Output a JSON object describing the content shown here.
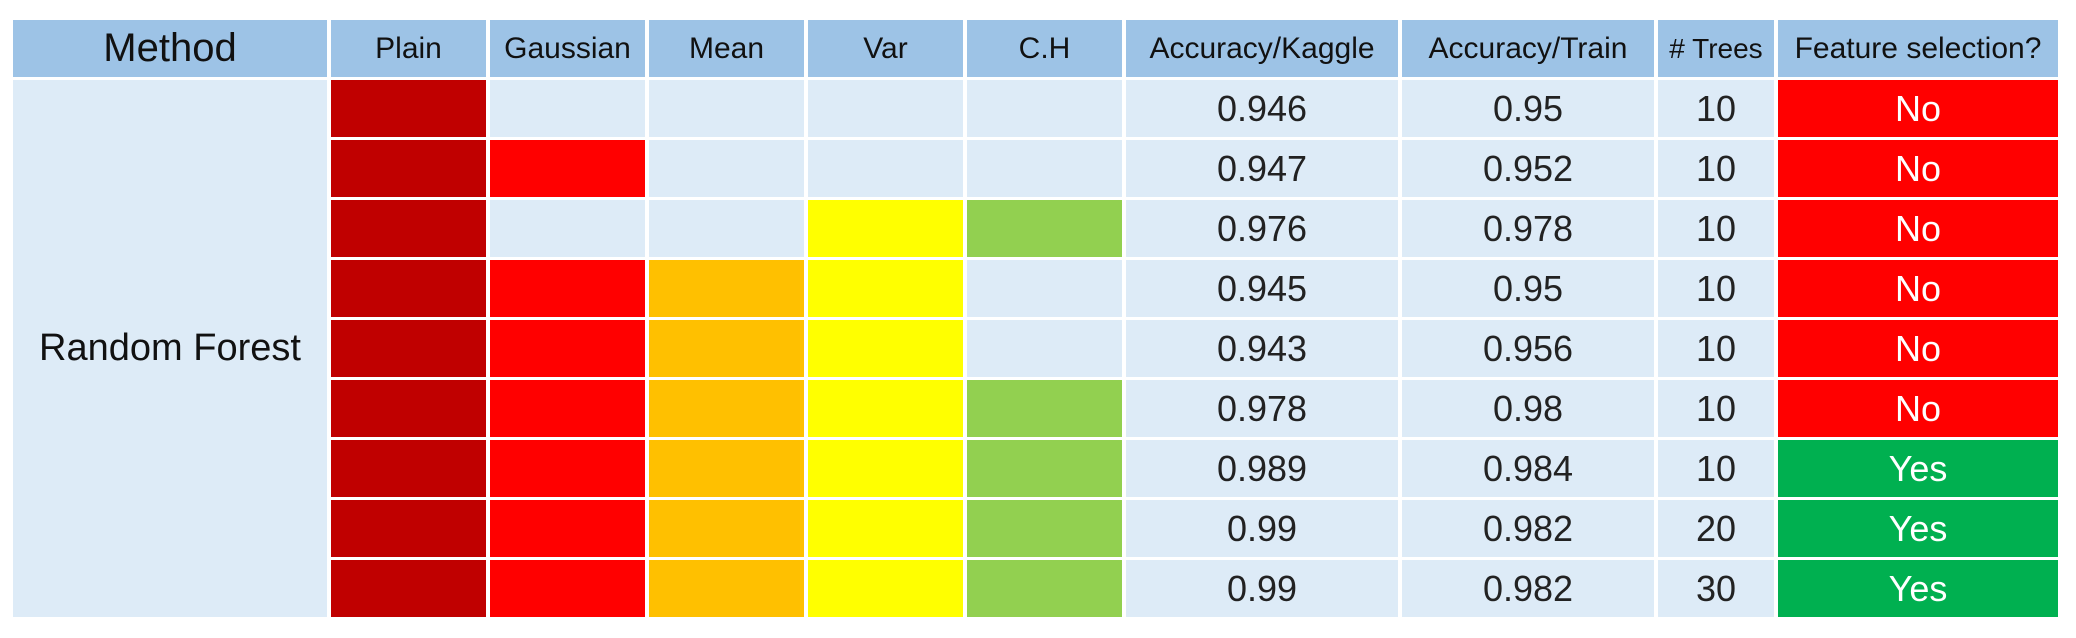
{
  "header": {
    "method": "Method",
    "plain": "Plain",
    "gaussian": "Gaussian",
    "mean": "Mean",
    "var": "Var",
    "ch": "C.H",
    "acc_kaggle": "Accuracy/Kaggle",
    "acc_train": "Accuracy/Train",
    "trees": "# Trees",
    "feature_selection": "Feature selection?"
  },
  "method_label": "Random Forest",
  "feature_colors": {
    "header_bg": "#9dc3e6",
    "empty": "#ddebf7",
    "plain": "#c00000",
    "gaussian": "#ff0000",
    "mean": "#ffc000",
    "var": "#ffff00",
    "ch": "#92d050",
    "no": "#ff0000",
    "yes": "#00b050"
  },
  "rows": [
    {
      "plain": true,
      "gaussian": false,
      "mean": false,
      "var": false,
      "ch": false,
      "acc_kaggle": "0.946",
      "acc_train": "0.95",
      "trees": "10",
      "fs": "No"
    },
    {
      "plain": true,
      "gaussian": true,
      "mean": false,
      "var": false,
      "ch": false,
      "acc_kaggle": "0.947",
      "acc_train": "0.952",
      "trees": "10",
      "fs": "No"
    },
    {
      "plain": true,
      "gaussian": false,
      "mean": false,
      "var": true,
      "ch": true,
      "acc_kaggle": "0.976",
      "acc_train": "0.978",
      "trees": "10",
      "fs": "No"
    },
    {
      "plain": true,
      "gaussian": true,
      "mean": true,
      "var": true,
      "ch": false,
      "acc_kaggle": "0.945",
      "acc_train": "0.95",
      "trees": "10",
      "fs": "No"
    },
    {
      "plain": true,
      "gaussian": true,
      "mean": true,
      "var": true,
      "ch": false,
      "acc_kaggle": "0.943",
      "acc_train": "0.956",
      "trees": "10",
      "fs": "No"
    },
    {
      "plain": true,
      "gaussian": true,
      "mean": true,
      "var": true,
      "ch": true,
      "acc_kaggle": "0.978",
      "acc_train": "0.98",
      "trees": "10",
      "fs": "No"
    },
    {
      "plain": true,
      "gaussian": true,
      "mean": true,
      "var": true,
      "ch": true,
      "acc_kaggle": "0.989",
      "acc_train": "0.984",
      "trees": "10",
      "fs": "Yes"
    },
    {
      "plain": true,
      "gaussian": true,
      "mean": true,
      "var": true,
      "ch": true,
      "acc_kaggle": "0.99",
      "acc_train": "0.982",
      "trees": "20",
      "fs": "Yes"
    },
    {
      "plain": true,
      "gaussian": true,
      "mean": true,
      "var": true,
      "ch": true,
      "acc_kaggle": "0.99",
      "acc_train": "0.982",
      "trees": "30",
      "fs": "Yes"
    }
  ]
}
